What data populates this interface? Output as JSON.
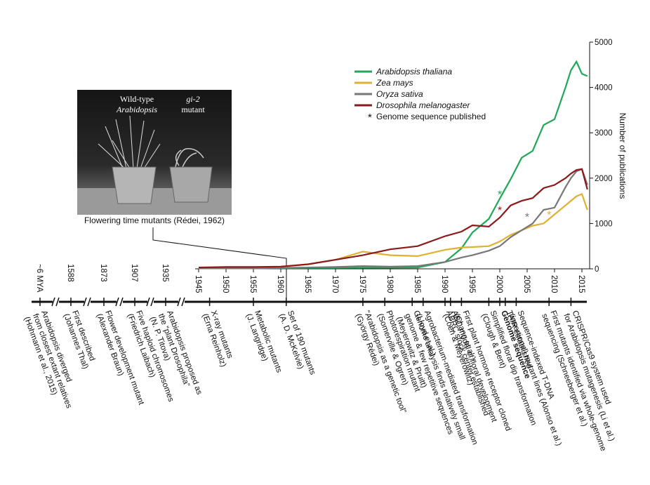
{
  "chart_data": {
    "type": "line",
    "y_label": "Number of publications",
    "x": [
      1945,
      1950,
      1955,
      1960,
      1965,
      1970,
      1975,
      1980,
      1985,
      1990,
      1993,
      1995,
      1998,
      2000,
      2002,
      2004,
      2006,
      2008,
      2010,
      2012,
      2013,
      2014,
      2015,
      2016
    ],
    "series": [
      {
        "name": "Arabidopsis thaliana",
        "color": "#1fa855",
        "values": [
          10,
          10,
          10,
          15,
          20,
          20,
          25,
          25,
          30,
          150,
          450,
          800,
          1100,
          1550,
          1980,
          2450,
          2600,
          3170,
          3300,
          4000,
          4380,
          4570,
          4300,
          4250
        ],
        "genome": {
          "x": 2000,
          "y": 1650
        }
      },
      {
        "name": "Zea mays",
        "color": "#e0b030",
        "values": [
          20,
          20,
          30,
          40,
          100,
          200,
          380,
          300,
          280,
          420,
          470,
          480,
          500,
          600,
          750,
          850,
          950,
          1000,
          1200,
          1400,
          1500,
          1600,
          1650,
          1300
        ],
        "genome": {
          "x": 2009,
          "y": 1200
        }
      },
      {
        "name": "Oryza sativa",
        "color": "#777777",
        "values": [
          10,
          10,
          10,
          20,
          30,
          40,
          60,
          50,
          60,
          150,
          250,
          300,
          400,
          500,
          700,
          850,
          1000,
          1300,
          1350,
          1800,
          2000,
          2150,
          2200,
          1850
        ],
        "genome": {
          "x": 2005,
          "y": 1150
        }
      },
      {
        "name": "Drosophila melanogaster",
        "color": "#8b1a1a",
        "values": [
          30,
          40,
          40,
          50,
          100,
          200,
          300,
          430,
          500,
          720,
          820,
          960,
          930,
          1130,
          1400,
          1500,
          1560,
          1780,
          1850,
          2000,
          2100,
          2180,
          2200,
          1750
        ],
        "genome": {
          "x": 2000,
          "y": 1300
        }
      }
    ],
    "genome_marker": {
      "symbol": "*",
      "label": "Genome sequence published"
    },
    "xlim": [
      1945,
      2015
    ],
    "xticks": [
      1945,
      1950,
      1955,
      1960,
      1965,
      1970,
      1975,
      1980,
      1985,
      1990,
      1995,
      2000,
      2005,
      2010,
      2015
    ],
    "ylim": [
      0,
      5000
    ],
    "yticks": [
      0,
      1000,
      2000,
      3000,
      4000,
      5000
    ]
  },
  "photo": {
    "labels": [
      "Wild-type",
      "Arabidopsis",
      "gi-2",
      "mutant"
    ],
    "caption": "Flowering time mutants (Rédei, 1962)"
  },
  "timeline": {
    "early": [
      {
        "label": "~6 MYA",
        "lines": [
          "Arabidopsis diverged",
          "from closest extant relatives",
          "(Hohmann et al., 2015)"
        ]
      },
      {
        "label": "1588",
        "lines": [
          "First described",
          "(Johannes Thal)"
        ]
      },
      {
        "label": "1873",
        "lines": [
          "Flower development mutant",
          "(Alexander Braun)"
        ]
      },
      {
        "label": "1907",
        "lines": [
          "Five haploid chromosomes",
          "(Friedrich Laibach)"
        ]
      },
      {
        "label": "1935",
        "lines": [
          "Arabidopsis proposed as",
          "the “plant Drosophila”",
          "(N. P. Titova)"
        ]
      }
    ],
    "events": [
      {
        "year": 1947,
        "lines": [
          "X-ray mutants",
          "(Erna Reinholz)"
        ]
      },
      {
        "year": 1955,
        "lines": [
          "Metabolic mutants",
          "(J. Langridge)"
        ]
      },
      {
        "year": 1961,
        "lines": [
          "Set of 190 mutants",
          "(A. D. McKelvie)"
        ]
      },
      {
        "year": 1975,
        "lines": [
          "“Arabidopsis as a genetic tool”",
          "(György Rédei)"
        ]
      },
      {
        "year": 1979,
        "lines": [
          "Photorespiration mutant",
          "(Somerville & Ogren)"
        ]
      },
      {
        "year": 1984,
        "lines": [
          "Genome analysis finds relatively small",
          "genome & few repetitive sequences",
          "(Meyerowitz & Pruitt)"
        ]
      },
      {
        "year": 1986,
        "lines": [
          "Agrobacterium-mediated transformation",
          "(Lloyd et al.)"
        ]
      },
      {
        "year": 1990,
        "lines": [
          "ABRC stock center established"
        ]
      },
      {
        "year": 1991,
        "lines": [
          "ABC model of floral development",
          "(Coen & Meyerowitz)"
        ]
      },
      {
        "year": 1993,
        "lines": [
          "First plant hormone receptor cloned",
          "(Chang et al.)"
        ]
      },
      {
        "year": 1998,
        "lines": [
          "Simplified floral dip transformation",
          "(Clough & Bent)"
        ]
      },
      {
        "year": 2000,
        "lines": [
          "Genome sequence"
        ],
        "bold": true
      },
      {
        "year": 2001,
        "lines": [
          "TAIR established"
        ]
      },
      {
        "year": 2003,
        "lines": [
          "Sequence-indexed T-DNA",
          "(insertional) mutant lines (Alonso et al.)"
        ]
      },
      {
        "year": 2009,
        "lines": [
          "First mutants identified via whole-genome",
          "sequencing (Schneeberger et al.)"
        ]
      },
      {
        "year": 2013,
        "lines": [
          "CRISPR/Cas9 system used",
          "for Arabidopsis mutagenesis (Li et al.)"
        ]
      }
    ]
  }
}
